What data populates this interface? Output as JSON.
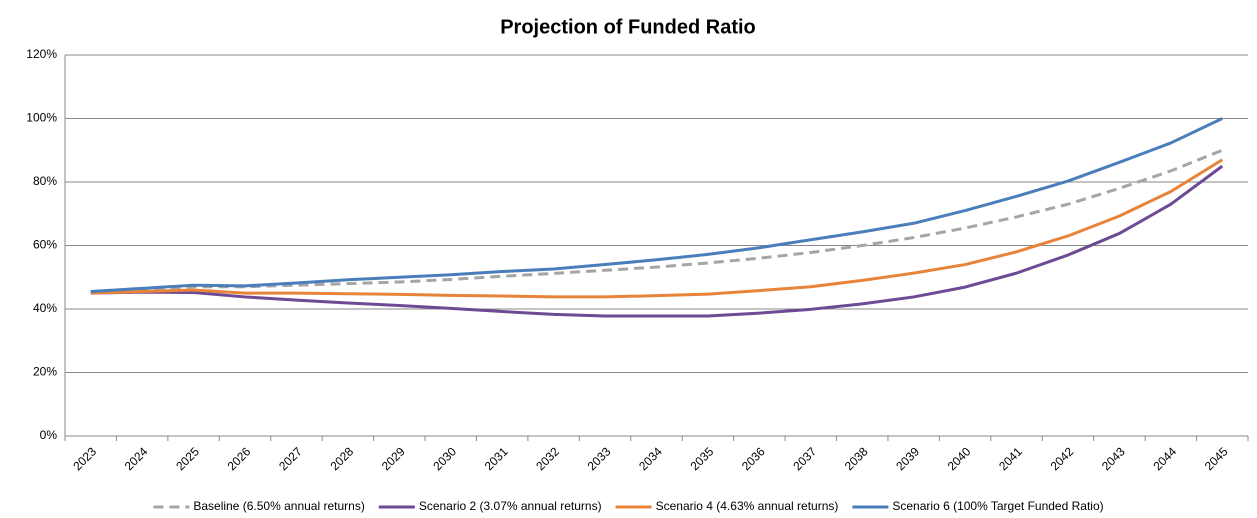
{
  "chart_data": {
    "type": "line",
    "title": "Projection of Funded Ratio",
    "categories": [
      "2023",
      "2024",
      "2025",
      "2026",
      "2027",
      "2028",
      "2029",
      "2030",
      "2031",
      "2032",
      "2033",
      "2034",
      "2035",
      "2036",
      "2037",
      "2038",
      "2039",
      "2040",
      "2041",
      "2042",
      "2043",
      "2044",
      "2045"
    ],
    "series": [
      {
        "name": "Baseline (6.50% annual returns)",
        "color": "#a5a5a5",
        "dashed": true,
        "values": [
          45,
          46,
          47,
          47,
          47.5,
          48,
          48.5,
          49.3,
          50.3,
          51.2,
          52.2,
          53.2,
          54.5,
          56,
          57.8,
          60,
          62.5,
          65.5,
          69,
          73,
          78,
          83.5,
          90
        ]
      },
      {
        "name": "Scenario 2 (3.07% annual returns)",
        "color": "#6c4a94",
        "values": [
          45,
          45.3,
          45.2,
          43.8,
          42.8,
          41.9,
          41.1,
          40.2,
          39.2,
          38.3,
          37.8,
          37.8,
          37.8,
          38.7,
          39.9,
          41.6,
          43.8,
          46.9,
          51.3,
          57,
          63.8,
          73,
          85
        ]
      },
      {
        "name": "Scenario 4 (4.63% annual returns)",
        "color": "#e8833a",
        "values": [
          45,
          45.5,
          46,
          45,
          45,
          44.8,
          44.6,
          44.3,
          44.1,
          43.8,
          43.8,
          44.2,
          44.7,
          45.8,
          47,
          49,
          51.3,
          54,
          58,
          63,
          69.3,
          77,
          87
        ]
      },
      {
        "name": "Scenario 6 (100% Target Funded Ratio)",
        "color": "#4a7ebb",
        "values": [
          45.5,
          46.5,
          47.5,
          47.3,
          48.2,
          49.2,
          50,
          50.8,
          51.8,
          52.6,
          54,
          55.5,
          57.2,
          59.3,
          61.8,
          64.3,
          67,
          71,
          75.5,
          80.3,
          86.2,
          92.3,
          100
        ]
      }
    ],
    "ylim": [
      0,
      120
    ],
    "yticks": [
      {
        "value": 0,
        "label": "0%"
      },
      {
        "value": 20,
        "label": "20%"
      },
      {
        "value": 40,
        "label": "40%"
      },
      {
        "value": 60,
        "label": "60%"
      },
      {
        "value": 80,
        "label": "80%"
      },
      {
        "value": 100,
        "label": "100%"
      },
      {
        "value": 120,
        "label": "120%"
      }
    ],
    "grid": true
  }
}
